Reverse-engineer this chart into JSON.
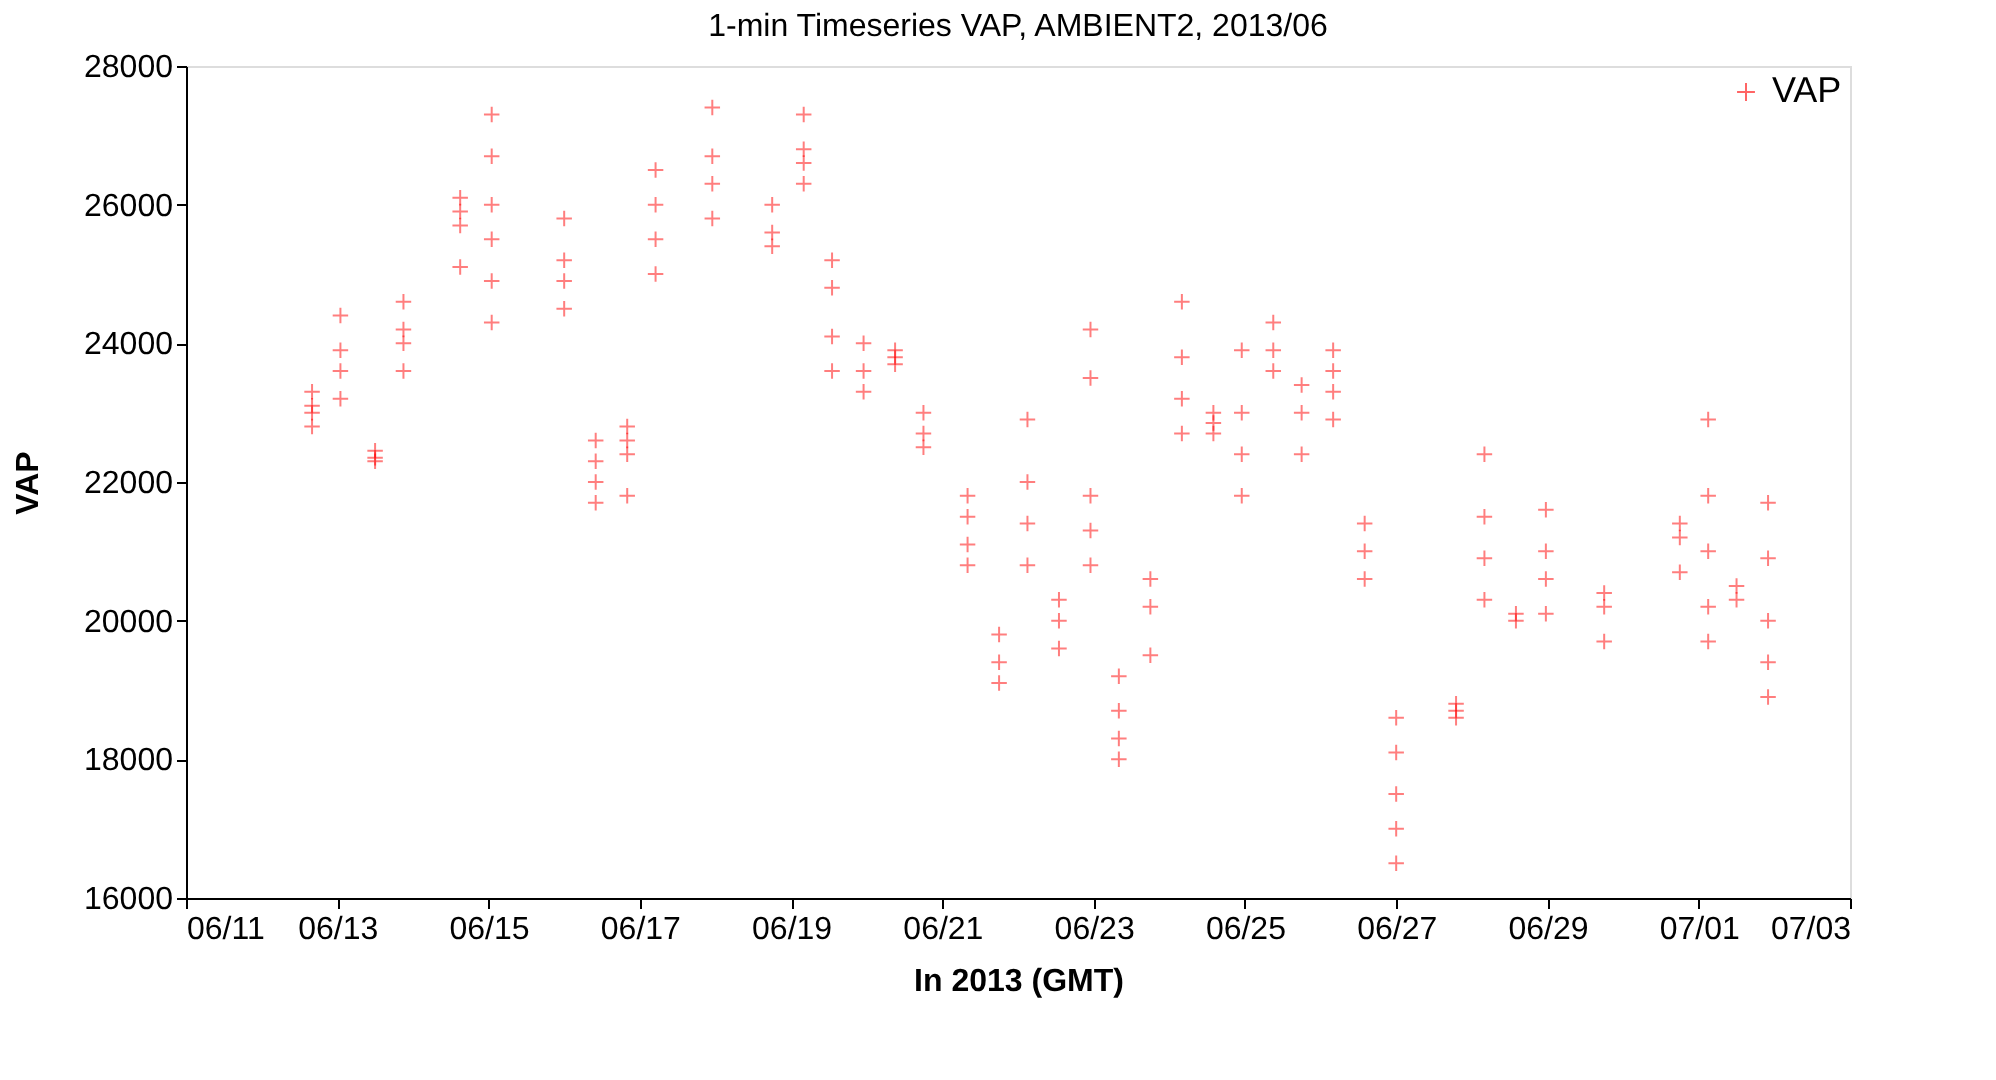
{
  "chart_data": {
    "type": "scatter",
    "title": "1-min Timeseries VAP, AMBIENT2, 2013/06",
    "xlabel": "In 2013 (GMT)",
    "ylabel": "VAP",
    "marker": "cross",
    "grid": false,
    "legend": "top right",
    "xlim": [
      "2013-06-11",
      "2013-07-03"
    ],
    "xticks": [
      {
        "value": "2013-06-11",
        "label": "06/11"
      },
      {
        "value": "2013-06-13",
        "label": "06/13"
      },
      {
        "value": "2013-06-15",
        "label": "06/15"
      },
      {
        "value": "2013-06-17",
        "label": "06/17"
      },
      {
        "value": "2013-06-19",
        "label": "06/19"
      },
      {
        "value": "2013-06-21",
        "label": "06/21"
      },
      {
        "value": "2013-06-23",
        "label": "06/23"
      },
      {
        "value": "2013-06-25",
        "label": "06/25"
      },
      {
        "value": "2013-06-27",
        "label": "06/27"
      },
      {
        "value": "2013-06-29",
        "label": "06/29"
      },
      {
        "value": "2013-07-01",
        "label": "07/01"
      },
      {
        "value": "2013-07-03",
        "label": "07/03"
      }
    ],
    "ylim": [
      16000,
      28000
    ],
    "yticks": [
      16000,
      18000,
      20000,
      22000,
      24000,
      26000,
      28000
    ],
    "series": [
      {
        "name": "VAP",
        "color": "#ff0000",
        "x": [
          "2013-06-12T16:00",
          "2013-06-12T16:00",
          "2013-06-12T16:00",
          "2013-06-12T16:00",
          "2013-06-13T01:00",
          "2013-06-13T01:00",
          "2013-06-13T01:00",
          "2013-06-13T01:00",
          "2013-06-13T12:00",
          "2013-06-13T12:00",
          "2013-06-13T12:00",
          "2013-06-13T21:00",
          "2013-06-13T21:00",
          "2013-06-13T21:00",
          "2013-06-13T21:00",
          "2013-06-14T15:00",
          "2013-06-14T15:00",
          "2013-06-14T15:00",
          "2013-06-14T15:00",
          "2013-06-15T01:00",
          "2013-06-15T01:00",
          "2013-06-15T01:00",
          "2013-06-15T01:00",
          "2013-06-15T01:00",
          "2013-06-15T01:00",
          "2013-06-16T00:00",
          "2013-06-16T00:00",
          "2013-06-16T00:00",
          "2013-06-16T00:00",
          "2013-06-16T10:00",
          "2013-06-16T10:00",
          "2013-06-16T10:00",
          "2013-06-16T10:00",
          "2013-06-16T20:00",
          "2013-06-16T20:00",
          "2013-06-16T20:00",
          "2013-06-16T20:00",
          "2013-06-17T05:00",
          "2013-06-17T05:00",
          "2013-06-17T05:00",
          "2013-06-17T05:00",
          "2013-06-17T23:00",
          "2013-06-17T23:00",
          "2013-06-17T23:00",
          "2013-06-17T23:00",
          "2013-06-18T18:00",
          "2013-06-18T18:00",
          "2013-06-18T18:00",
          "2013-06-19T04:00",
          "2013-06-19T04:00",
          "2013-06-19T04:00",
          "2013-06-19T04:00",
          "2013-06-19T13:00",
          "2013-06-19T13:00",
          "2013-06-19T13:00",
          "2013-06-19T13:00",
          "2013-06-19T23:00",
          "2013-06-19T23:00",
          "2013-06-19T23:00",
          "2013-06-20T09:00",
          "2013-06-20T09:00",
          "2013-06-20T09:00",
          "2013-06-20T18:00",
          "2013-06-20T18:00",
          "2013-06-20T18:00",
          "2013-06-21T08:00",
          "2013-06-21T08:00",
          "2013-06-21T08:00",
          "2013-06-21T08:00",
          "2013-06-21T18:00",
          "2013-06-21T18:00",
          "2013-06-21T18:00",
          "2013-06-22T03:00",
          "2013-06-22T03:00",
          "2013-06-22T03:00",
          "2013-06-22T03:00",
          "2013-06-22T13:00",
          "2013-06-22T13:00",
          "2013-06-22T13:00",
          "2013-06-22T23:00",
          "2013-06-22T23:00",
          "2013-06-22T23:00",
          "2013-06-22T23:00",
          "2013-06-22T23:00",
          "2013-06-23T08:00",
          "2013-06-23T08:00",
          "2013-06-23T08:00",
          "2013-06-23T08:00",
          "2013-06-23T18:00",
          "2013-06-23T18:00",
          "2013-06-23T18:00",
          "2013-06-24T04:00",
          "2013-06-24T04:00",
          "2013-06-24T04:00",
          "2013-06-24T04:00",
          "2013-06-24T14:00",
          "2013-06-24T14:00",
          "2013-06-24T14:00",
          "2013-06-24T23:00",
          "2013-06-24T23:00",
          "2013-06-24T23:00",
          "2013-06-24T23:00",
          "2013-06-25T09:00",
          "2013-06-25T09:00",
          "2013-06-25T09:00",
          "2013-06-25T18:00",
          "2013-06-25T18:00",
          "2013-06-25T18:00",
          "2013-06-26T04:00",
          "2013-06-26T04:00",
          "2013-06-26T04:00",
          "2013-06-26T04:00",
          "2013-06-26T14:00",
          "2013-06-26T14:00",
          "2013-06-26T14:00",
          "2013-06-27T00:00",
          "2013-06-27T00:00",
          "2013-06-27T00:00",
          "2013-06-27T00:00",
          "2013-06-27T00:00",
          "2013-06-27T19:00",
          "2013-06-27T19:00",
          "2013-06-27T19:00",
          "2013-06-28T04:00",
          "2013-06-28T04:00",
          "2013-06-28T04:00",
          "2013-06-28T04:00",
          "2013-06-28T14:00",
          "2013-06-28T14:00",
          "2013-06-28T23:30",
          "2013-06-28T23:30",
          "2013-06-28T23:30",
          "2013-06-28T23:30",
          "2013-06-29T18:00",
          "2013-06-29T18:00",
          "2013-06-29T18:00",
          "2013-06-30T18:00",
          "2013-06-30T18:00",
          "2013-06-30T18:00",
          "2013-07-01T03:00",
          "2013-07-01T03:00",
          "2013-07-01T03:00",
          "2013-07-01T03:00",
          "2013-07-01T03:00",
          "2013-07-01T12:00",
          "2013-07-01T12:00",
          "2013-07-01T22:00",
          "2013-07-01T22:00",
          "2013-07-01T22:00",
          "2013-07-01T22:00",
          "2013-07-01T22:00"
        ],
        "values": [
          22800,
          23000,
          23100,
          23300,
          23200,
          23600,
          23900,
          24400,
          22300,
          22350,
          22450,
          23600,
          24000,
          24200,
          24600,
          25100,
          25700,
          25900,
          26100,
          24300,
          24900,
          25500,
          26000,
          26700,
          27300,
          24500,
          24900,
          25200,
          25800,
          21700,
          22000,
          22300,
          22600,
          21800,
          22400,
          22600,
          22800,
          25000,
          25500,
          26000,
          26500,
          25800,
          26300,
          26700,
          27400,
          25400,
          25600,
          26000,
          26300,
          26600,
          26800,
          27300,
          23600,
          24100,
          24800,
          25200,
          23300,
          23600,
          24000,
          23700,
          23800,
          23900,
          22500,
          22700,
          23000,
          20800,
          21100,
          21500,
          21800,
          19100,
          19400,
          19800,
          20800,
          21400,
          22000,
          22900,
          19600,
          20000,
          20300,
          20800,
          21300,
          21800,
          23500,
          24200,
          18000,
          18300,
          18700,
          19200,
          19500,
          20200,
          20600,
          22700,
          23200,
          23800,
          24600,
          22700,
          22850,
          23000,
          21800,
          22400,
          23000,
          23900,
          23600,
          23900,
          24300,
          22400,
          23000,
          23400,
          22900,
          23300,
          23600,
          23900,
          20600,
          21000,
          21400,
          16500,
          17000,
          17500,
          18100,
          18600,
          18600,
          18700,
          18800,
          20300,
          20900,
          21500,
          22400,
          20000,
          20100,
          20100,
          20600,
          21000,
          21600,
          19700,
          20200,
          20400,
          20700,
          21200,
          21400,
          19700,
          20200,
          21000,
          21800,
          22900,
          20300,
          20500,
          18900,
          19400,
          20000,
          20900,
          21700
        ]
      }
    ]
  }
}
